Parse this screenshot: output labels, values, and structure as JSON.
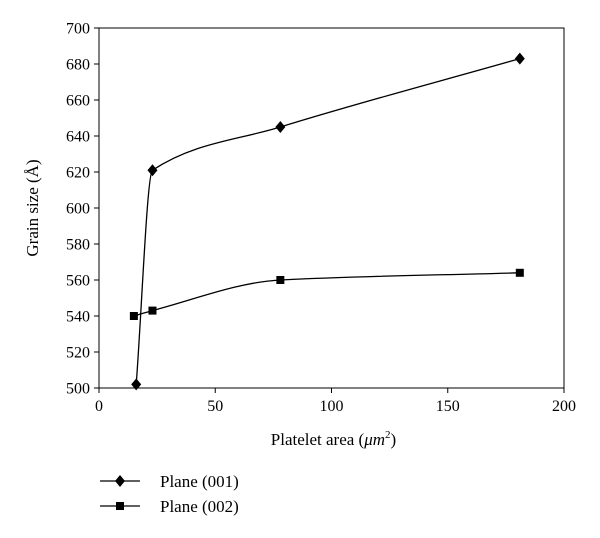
{
  "chart_data": {
    "type": "line",
    "xlabel_main": "Platelet area (",
    "xlabel_unit_base": "μm",
    "xlabel_unit_exp": "2",
    "xlabel_close": ")",
    "ylabel": "Grain size (Å)",
    "xlim": [
      0,
      200
    ],
    "ylim": [
      500,
      700
    ],
    "x_ticks": [
      "0",
      "50",
      "100",
      "150",
      "200"
    ],
    "y_ticks": [
      "500",
      "520",
      "540",
      "560",
      "580",
      "600",
      "620",
      "640",
      "660",
      "680",
      "700"
    ],
    "grid": false,
    "legend_position": "bottom-left",
    "series": [
      {
        "name": "Plane (001)",
        "marker": "diamond",
        "color": "#000000",
        "x": [
          16,
          23,
          78,
          181
        ],
        "y": [
          502,
          621,
          645,
          683
        ]
      },
      {
        "name": "Plane (002)",
        "marker": "square",
        "color": "#000000",
        "x": [
          15,
          23,
          78,
          181
        ],
        "y": [
          540,
          543,
          560,
          564
        ]
      }
    ]
  }
}
